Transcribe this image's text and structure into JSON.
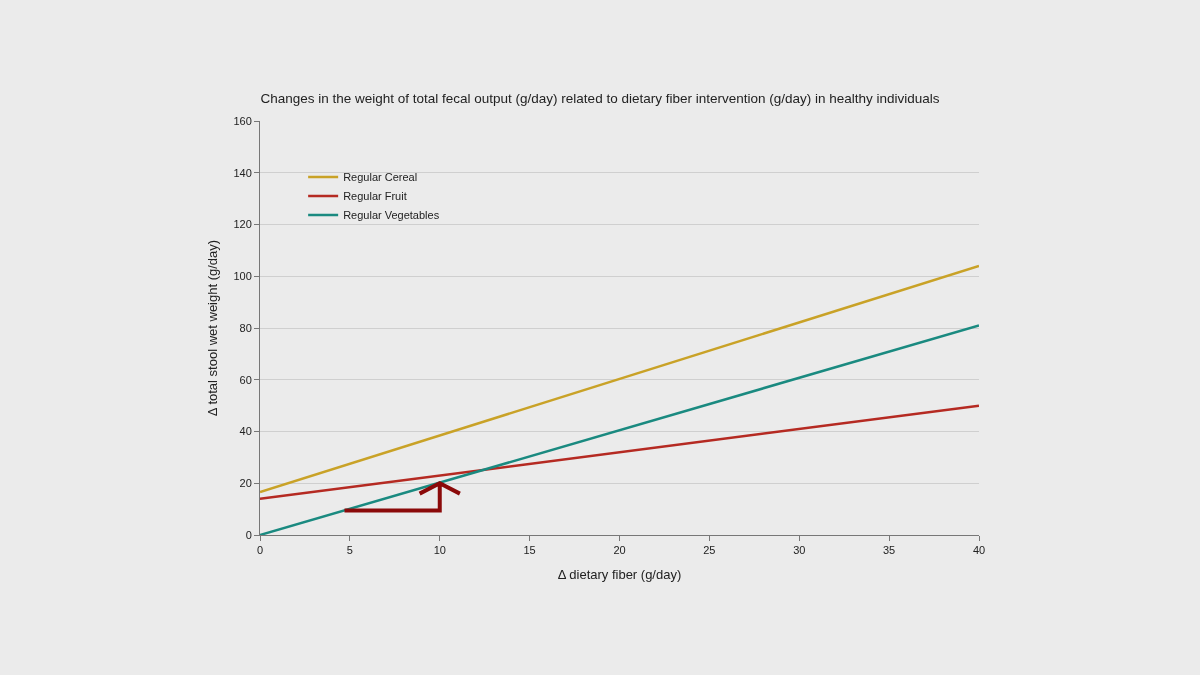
{
  "chart_data": {
    "type": "line",
    "title": "Changes in the weight of total fecal output (g/day) related to dietary fiber intervention (g/day) in healthy individuals",
    "xlabel": "Δ dietary fiber (g/day)",
    "ylabel": "Δ total stool wet weight (g/day)",
    "x": [
      0,
      40
    ],
    "series": [
      {
        "name": "Regular Cereal",
        "color": "#c9a227",
        "values": [
          16.6,
          104
        ]
      },
      {
        "name": "Regular Fruit",
        "color": "#b52a22",
        "values": [
          14,
          50
        ]
      },
      {
        "name": "Regular Vegetables",
        "color": "#1a8a80",
        "values": [
          0,
          81
        ]
      }
    ],
    "xlim": [
      0,
      40
    ],
    "xticks": [
      0,
      5,
      10,
      15,
      20,
      25,
      30,
      35,
      40
    ],
    "ylim": [
      0,
      160
    ],
    "yticks": [
      0,
      20,
      40,
      60,
      80,
      100,
      120,
      140,
      160
    ],
    "grid": "y",
    "legend": "top left",
    "marker": "none",
    "line_style": "solid"
  }
}
